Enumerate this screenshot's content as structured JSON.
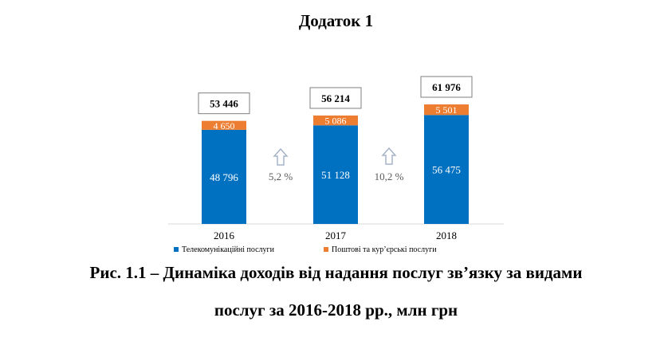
{
  "heading": "Додаток 1",
  "caption": {
    "line1": "Рис. 1.1 – Динаміка доходів від надання послуг зв’язку за видами",
    "line2": "послуг за 2016-2018 рр., млн грн"
  },
  "colors": {
    "telecom": "#0070C0",
    "postal": "#ED7D31",
    "arrow": "#A6B4C8"
  },
  "chart_data": {
    "type": "bar",
    "stacked": true,
    "categories": [
      "2016",
      "2017",
      "2018"
    ],
    "series": [
      {
        "name": "Телекомунікаційні послуги",
        "values": [
          48796,
          51128,
          56475
        ],
        "labels": [
          "48 796",
          "51 128",
          "56 475"
        ]
      },
      {
        "name": "Поштові та кур’єрські послуги",
        "values": [
          4650,
          5086,
          5501
        ],
        "labels": [
          "4 650",
          "5 086",
          "5 501"
        ]
      }
    ],
    "totals": [
      53446,
      56214,
      61976
    ],
    "total_labels": [
      "53 446",
      "56 214",
      "61 976"
    ],
    "growth_labels": [
      "5,2 %",
      "10,2 %"
    ],
    "legend_position": "bottom",
    "grid": false
  }
}
